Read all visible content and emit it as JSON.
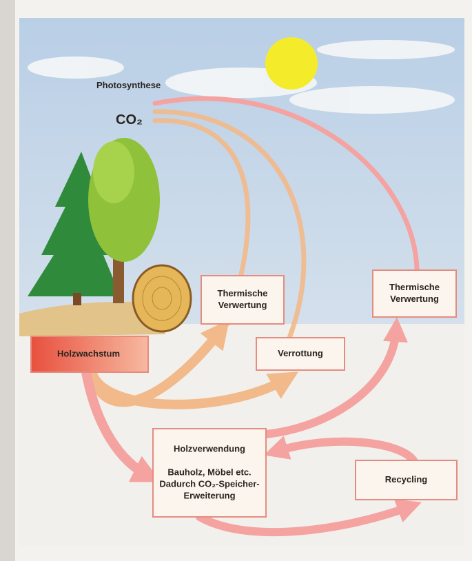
{
  "labels": {
    "photosynthesis": "Photosynthese",
    "co2": "CO₂"
  },
  "nodes": [
    {
      "lines": [
        "Holzwachstum"
      ]
    },
    {
      "lines": [
        "Thermische",
        "Verwertung"
      ]
    },
    {
      "lines": [
        "Verrottung"
      ]
    },
    {
      "lines": [
        "Thermische",
        "Verwertung"
      ]
    },
    {
      "lines": [
        "Holzverwendung",
        "",
        "Bauholz, Möbel etc.",
        "Dadurch CO₂-Speicher-",
        "Erweiterung"
      ]
    },
    {
      "lines": [
        "Recycling"
      ]
    }
  ]
}
